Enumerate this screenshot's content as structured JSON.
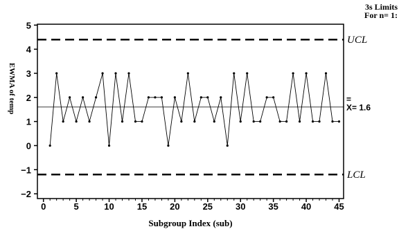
{
  "chart_data": {
    "type": "line",
    "title": "",
    "xlabel": "Subgroup Index (sub)",
    "ylabel": "EWMA of temp",
    "xlim": [
      0,
      45
    ],
    "ylim": [
      -2,
      5
    ],
    "x_ticks": [
      0,
      5,
      10,
      15,
      20,
      25,
      30,
      35,
      40,
      45
    ],
    "y_ticks": [
      -2,
      -1,
      0,
      1,
      2,
      3,
      4,
      5
    ],
    "limits_header": [
      "3s Limits",
      "For n= 1:"
    ],
    "ucl": {
      "label": "UCL",
      "value": 4.4
    },
    "lcl": {
      "label": "LCL",
      "value": -1.2
    },
    "center": {
      "label": "X= 1.6",
      "value": 1.6
    },
    "grid": false,
    "series": [
      {
        "x": [
          1,
          2,
          3,
          4,
          5,
          6,
          7,
          8,
          9,
          10,
          11,
          12,
          13,
          14,
          15,
          16,
          17,
          18,
          19,
          20,
          21,
          22,
          23,
          24,
          25,
          26,
          27,
          28,
          29,
          30,
          31,
          32,
          33,
          34,
          35,
          36,
          37,
          38,
          39,
          40,
          41,
          42,
          43,
          44,
          45
        ],
        "values": [
          0,
          3,
          1,
          2,
          1,
          2,
          1,
          2,
          3,
          0,
          3,
          1,
          3,
          1,
          1,
          2,
          2,
          2,
          0,
          2,
          1,
          3,
          1,
          2,
          2,
          1,
          2,
          0,
          3,
          1,
          3,
          1,
          1,
          2,
          2,
          1,
          1,
          3,
          1,
          3,
          1,
          1,
          3,
          1,
          1
        ]
      }
    ]
  }
}
